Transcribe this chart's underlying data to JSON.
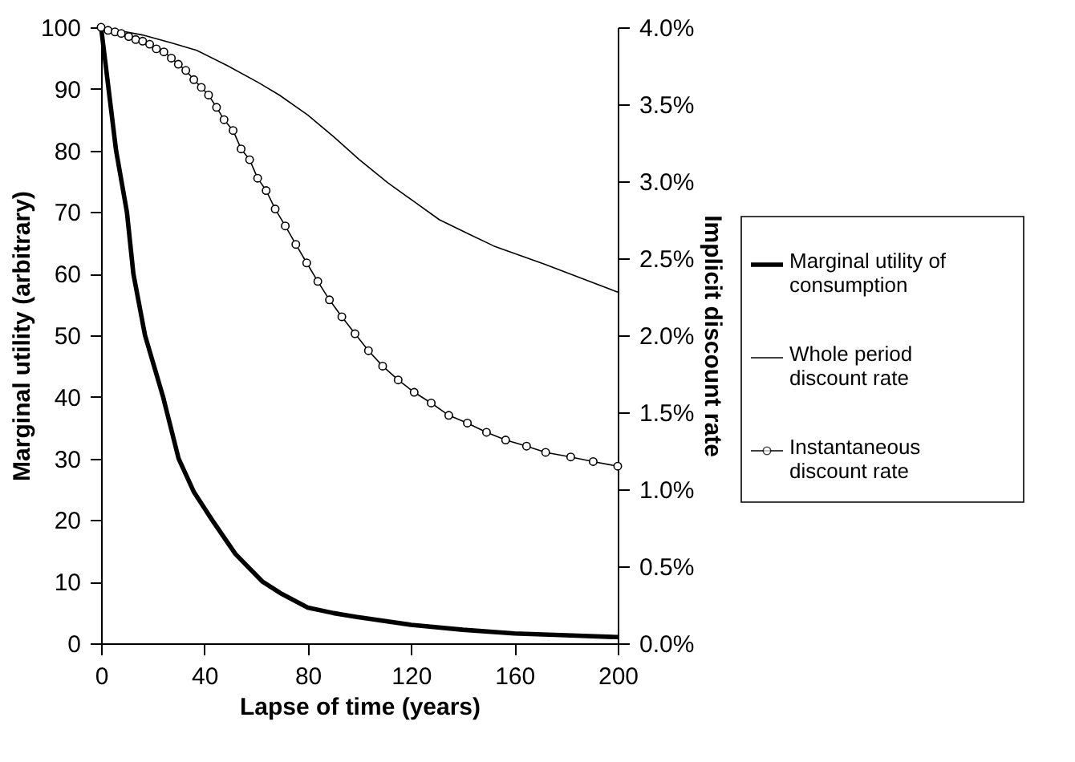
{
  "chart_data": {
    "type": "line",
    "xlabel": "Lapse of time (years)",
    "ylabel": "Marginal utility (arbitrary)",
    "y2label": "Implicit discount rate",
    "xlim": [
      0,
      200
    ],
    "xticks": [
      0,
      40,
      80,
      120,
      160,
      200
    ],
    "ylim": [
      0,
      100
    ],
    "yticks": [
      0,
      10,
      20,
      30,
      40,
      50,
      60,
      70,
      80,
      90,
      100
    ],
    "y2lim": [
      0,
      4
    ],
    "y2ticks": [
      {
        "value": 0,
        "label": "0.0%"
      },
      {
        "value": 0.5,
        "label": "0.5%"
      },
      {
        "value": 1,
        "label": "1.0%"
      },
      {
        "value": 1.5,
        "label": "1.5%"
      },
      {
        "value": 2,
        "label": "2.0%"
      },
      {
        "value": 2.5,
        "label": "2.5%"
      },
      {
        "value": 3,
        "label": "3.0%"
      },
      {
        "value": 3.5,
        "label": "3.5%"
      },
      {
        "value": 4,
        "label": "4.0%"
      }
    ],
    "grid": false,
    "legend": "right",
    "line_style": "solid",
    "series": [
      {
        "name": "Marginal utility of consumption",
        "color": "#000000",
        "marker": "none",
        "x": [
          0,
          5.8,
          10,
          12.5,
          17,
          24,
          30,
          36,
          43,
          52,
          62.5,
          70,
          80,
          90,
          98.6,
          120,
          140,
          160,
          180,
          200
        ],
        "values": [
          100,
          80,
          70,
          60,
          50,
          40,
          30,
          24.5,
          20,
          14.5,
          10,
          8,
          5.8,
          4.9,
          4.3,
          3.0,
          2.2,
          1.6,
          1.3,
          1.0
        ]
      },
      {
        "name": "Whole period discount rate",
        "color": "#000000",
        "marker": "none",
        "axis": "y2",
        "x": [
          0,
          16,
          27,
          37,
          49,
          61,
          69,
          80,
          90,
          100,
          111,
          121,
          131,
          142,
          152,
          162,
          172,
          186,
          200
        ],
        "values": [
          4.0,
          3.95,
          3.9,
          3.85,
          3.75,
          3.64,
          3.56,
          3.43,
          3.29,
          3.14,
          2.99,
          2.87,
          2.75,
          2.66,
          2.58,
          2.52,
          2.46,
          2.37,
          2.28
        ]
      },
      {
        "name": "Instantaneous discount rate",
        "color": "#000000",
        "marker": "circle",
        "axis": "y2",
        "x": [
          0,
          2.7,
          5.4,
          7.8,
          10.7,
          13.4,
          16.1,
          18.8,
          21.4,
          24.3,
          27.2,
          29.9,
          32.8,
          35.9,
          38.8,
          41.6,
          44.7,
          47.6,
          51.1,
          54.2,
          57.5,
          60.6,
          63.9,
          67.4,
          71.3,
          75.4,
          79.6,
          83.9,
          88.4,
          93.2,
          98.3,
          103.5,
          109,
          115,
          121.2,
          127.8,
          134.6,
          141.8,
          149.2,
          156.6,
          164.7,
          172.1,
          181.8,
          190.5,
          200
        ],
        "values": [
          4.0,
          3.98,
          3.97,
          3.96,
          3.94,
          3.92,
          3.91,
          3.89,
          3.86,
          3.84,
          3.8,
          3.76,
          3.72,
          3.66,
          3.61,
          3.56,
          3.48,
          3.4,
          3.33,
          3.21,
          3.14,
          3.02,
          2.94,
          2.82,
          2.71,
          2.59,
          2.47,
          2.35,
          2.23,
          2.12,
          2.01,
          1.9,
          1.8,
          1.71,
          1.63,
          1.56,
          1.48,
          1.43,
          1.37,
          1.32,
          1.28,
          1.24,
          1.21,
          1.18,
          1.15
        ]
      }
    ]
  }
}
